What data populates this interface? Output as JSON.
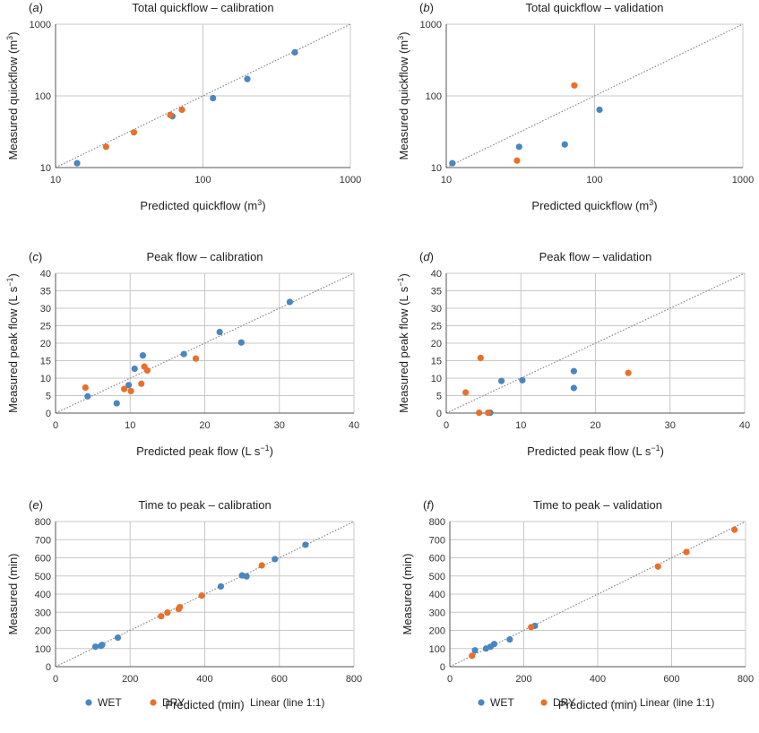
{
  "colors": {
    "wet": "#4a86c0",
    "dry": "#e8702a",
    "grid": "#c8c8c8",
    "axis": "#555555",
    "line": "#8c8c8c"
  },
  "legend": {
    "wet": "WET",
    "dry": "DRY",
    "linear": "Linear (line 1:1)"
  },
  "chart_data": [
    {
      "id": "a",
      "letter": "a",
      "title": "Total quickflow – calibration",
      "type": "scatter",
      "scale": "log",
      "xlabel": "Predicted quickflow (m",
      "xlabel_sup": "3",
      "xlabel_end": ")",
      "ylabel": "Measured quickflow (m",
      "ylabel_sup": "3",
      "ylabel_end": ")",
      "xlim": [
        10,
        1000
      ],
      "ylim": [
        10,
        1000
      ],
      "ticks": [
        10,
        100,
        1000
      ],
      "tick_labels": [
        "10",
        "100",
        "1000"
      ],
      "series": [
        {
          "name": "WET",
          "points": [
            [
              14,
              11.5
            ],
            [
              62,
              52
            ],
            [
              117,
              93
            ],
            [
              200,
              172
            ],
            [
              420,
              405
            ]
          ]
        },
        {
          "name": "DRY",
          "points": [
            [
              22,
              19.5
            ],
            [
              34,
              31
            ],
            [
              60,
              54
            ],
            [
              72,
              64
            ]
          ]
        }
      ]
    },
    {
      "id": "b",
      "letter": "b",
      "title": "Total quickflow – validation",
      "type": "scatter",
      "scale": "log",
      "xlabel": "Predicted quickflow (m",
      "xlabel_sup": "3",
      "xlabel_end": ")",
      "ylabel": "Measured quickflow (m",
      "ylabel_sup": "3",
      "ylabel_end": ")",
      "xlim": [
        10,
        1000
      ],
      "ylim": [
        10,
        1000
      ],
      "ticks": [
        10,
        100,
        1000
      ],
      "tick_labels": [
        "10",
        "100",
        "1000"
      ],
      "series": [
        {
          "name": "WET",
          "points": [
            [
              11,
              11.5
            ],
            [
              31,
              19.5
            ],
            [
              63,
              21
            ],
            [
              108,
              64
            ]
          ]
        },
        {
          "name": "DRY",
          "points": [
            [
              30,
              12.5
            ],
            [
              73,
              140
            ]
          ]
        }
      ]
    },
    {
      "id": "c",
      "letter": "c",
      "title": "Peak flow – calibration",
      "type": "scatter",
      "scale": "linear",
      "xlabel": "Predicted peak flow (L s",
      "xlabel_sup": "−1",
      "xlabel_end": ")",
      "ylabel": "Measured peak flow (L s",
      "ylabel_sup": "−1",
      "ylabel_end": ")",
      "xlim": [
        0,
        40
      ],
      "ylim": [
        0,
        40
      ],
      "xticks": [
        0,
        10,
        20,
        30,
        40
      ],
      "yticks": [
        0,
        5,
        10,
        15,
        20,
        25,
        30,
        35,
        40
      ],
      "series": [
        {
          "name": "WET",
          "points": [
            [
              4.3,
              4.8
            ],
            [
              8.2,
              2.8
            ],
            [
              9.8,
              8.0
            ],
            [
              10.6,
              12.7
            ],
            [
              11.7,
              16.5
            ],
            [
              17.2,
              16.9
            ],
            [
              22.0,
              23.2
            ],
            [
              24.9,
              20.2
            ],
            [
              31.4,
              31.8
            ]
          ]
        },
        {
          "name": "DRY",
          "points": [
            [
              4.0,
              7.3
            ],
            [
              9.2,
              6.9
            ],
            [
              10.1,
              6.3
            ],
            [
              11.5,
              8.4
            ],
            [
              11.9,
              13.3
            ],
            [
              12.3,
              12.2
            ],
            [
              18.8,
              15.6
            ]
          ]
        }
      ]
    },
    {
      "id": "d",
      "letter": "d",
      "title": "Peak flow – validation",
      "type": "scatter",
      "scale": "linear",
      "xlabel": "Predicted peak flow (L s",
      "xlabel_sup": "−1",
      "xlabel_end": ")",
      "ylabel": "Measured peak flow (L s",
      "ylabel_sup": "−1",
      "ylabel_end": ")",
      "xlim": [
        0,
        40
      ],
      "ylim": [
        0,
        40
      ],
      "xticks": [
        0,
        10,
        20,
        30,
        40
      ],
      "yticks": [
        0,
        5,
        10,
        15,
        20,
        25,
        30,
        35,
        40
      ],
      "series": [
        {
          "name": "WET",
          "points": [
            [
              5.9,
              0.1
            ],
            [
              7.4,
              9.2
            ],
            [
              10.2,
              9.4
            ],
            [
              17.1,
              12.0
            ],
            [
              17.1,
              7.2
            ]
          ]
        },
        {
          "name": "DRY",
          "points": [
            [
              2.6,
              5.9
            ],
            [
              4.4,
              0.1
            ],
            [
              4.6,
              15.8
            ],
            [
              5.6,
              0.1
            ],
            [
              24.4,
              11.5
            ]
          ]
        }
      ]
    },
    {
      "id": "e",
      "letter": "e",
      "title": "Time to peak – calibration",
      "type": "scatter",
      "scale": "linear",
      "xlabel": "Predicted (min)",
      "xlabel_sup": "",
      "xlabel_end": "",
      "ylabel": "Measured (min)",
      "ylabel_sup": "",
      "ylabel_end": "",
      "xlim": [
        0,
        800
      ],
      "ylim": [
        0,
        800
      ],
      "xticks": [
        0,
        200,
        400,
        600,
        800
      ],
      "yticks": [
        0,
        100,
        200,
        300,
        400,
        500,
        600,
        700,
        800
      ],
      "series": [
        {
          "name": "WET",
          "points": [
            [
              107,
              110
            ],
            [
              122,
              115
            ],
            [
              125,
              120
            ],
            [
              167,
              160
            ],
            [
              443,
              442
            ],
            [
              500,
              503
            ],
            [
              512,
              498
            ],
            [
              588,
              593
            ],
            [
              670,
              672
            ]
          ]
        },
        {
          "name": "DRY",
          "points": [
            [
              283,
              278
            ],
            [
              300,
              298
            ],
            [
              330,
              318
            ],
            [
              333,
              328
            ],
            [
              392,
              392
            ],
            [
              553,
              558
            ]
          ]
        }
      ]
    },
    {
      "id": "f",
      "letter": "f",
      "title": "Time to peak – validation",
      "type": "scatter",
      "scale": "linear",
      "xlabel": "Predicted (min)",
      "xlabel_sup": "",
      "xlabel_end": "",
      "ylabel": "Measured (min)",
      "ylabel_sup": "",
      "ylabel_end": "",
      "xlim": [
        0,
        800
      ],
      "ylim": [
        0,
        800
      ],
      "xticks": [
        0,
        200,
        400,
        600,
        800
      ],
      "yticks": [
        0,
        100,
        200,
        300,
        400,
        500,
        600,
        700,
        800
      ],
      "series": [
        {
          "name": "WET",
          "points": [
            [
              68,
              90
            ],
            [
              98,
              100
            ],
            [
              110,
              110
            ],
            [
              120,
              125
            ],
            [
              162,
              150
            ],
            [
              230,
              225
            ]
          ]
        },
        {
          "name": "DRY",
          "points": [
            [
              60,
              60
            ],
            [
              220,
              218
            ],
            [
              563,
              552
            ],
            [
              640,
              632
            ],
            [
              770,
              755
            ]
          ]
        }
      ]
    }
  ]
}
